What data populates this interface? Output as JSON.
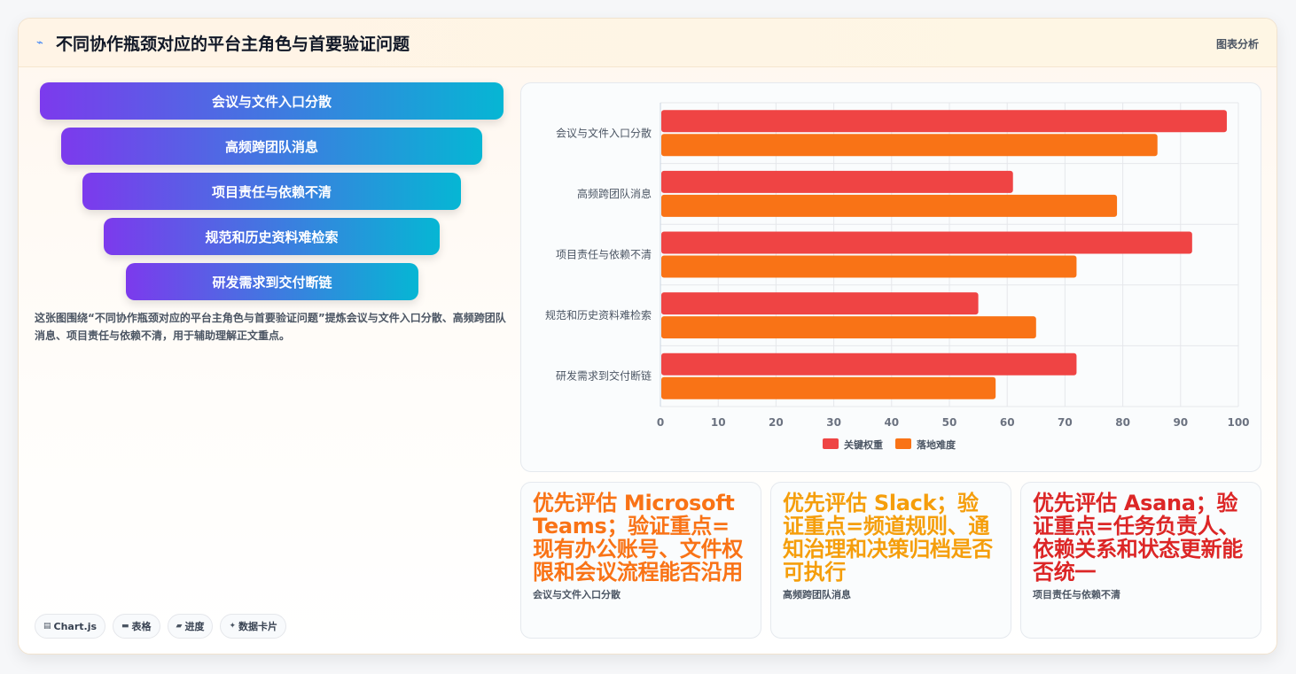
{
  "header": {
    "title": "不同协作瓶颈对应的平台主角色与首要验证问题",
    "tag": "图表分析",
    "icon": "trend-icon"
  },
  "funnel": {
    "items": [
      "会议与文件入口分散",
      "高频跨团队消息",
      "项目责任与依赖不清",
      "规范和历史资料难检索",
      "研发需求到交付断链"
    ]
  },
  "description": "这张图围绕“不同协作瓶颈对应的平台主角色与首要验证问题”提炼会议与文件入口分散、高频跨团队消息、项目责任与依赖不清，用于辅助理解正文重点。",
  "chips": [
    {
      "icon": "chart-icon",
      "label": "Chart.js"
    },
    {
      "icon": "table-icon",
      "label": "表格"
    },
    {
      "icon": "progress-icon",
      "label": "进度"
    },
    {
      "icon": "sparkle-icon",
      "label": "数据卡片"
    }
  ],
  "chart_data": {
    "type": "bar",
    "orientation": "horizontal",
    "categories": [
      "会议与文件入口分散",
      "高频跨团队消息",
      "项目责任与依赖不清",
      "规范和历史资料难检索",
      "研发需求到交付断链"
    ],
    "series": [
      {
        "name": "关键权重",
        "color": "#ef4444",
        "values": [
          98,
          61,
          92,
          55,
          72
        ]
      },
      {
        "name": "落地难度",
        "color": "#f97316",
        "values": [
          86,
          79,
          72,
          65,
          58
        ]
      }
    ],
    "xlim": [
      0,
      100
    ],
    "xticks": [
      "0",
      "10",
      "20",
      "30",
      "40",
      "50",
      "60",
      "70",
      "80",
      "90",
      "100"
    ],
    "grid": true,
    "legend": "bottom"
  },
  "stats": [
    {
      "title": "优先评估 Microsoft Teams；验证重点=现有办公账号、文件权限和会议流程能否沿用",
      "subtitle": "会议与文件入口分散",
      "color": "#f97316"
    },
    {
      "title": "优先评估 Slack；验证重点=频道规则、通知治理和决策归档是否可执行",
      "subtitle": "高频跨团队消息",
      "color": "#f59e0b"
    },
    {
      "title": "优先评估 Asana；验证重点=任务负责人、依赖关系和状态更新能否统一",
      "subtitle": "项目责任与依赖不清",
      "color": "#dc2626"
    }
  ]
}
